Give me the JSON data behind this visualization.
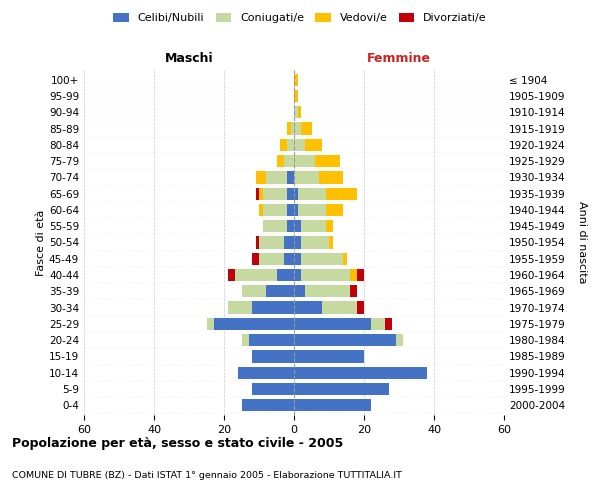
{
  "age_groups": [
    "0-4",
    "5-9",
    "10-14",
    "15-19",
    "20-24",
    "25-29",
    "30-34",
    "35-39",
    "40-44",
    "45-49",
    "50-54",
    "55-59",
    "60-64",
    "65-69",
    "70-74",
    "75-79",
    "80-84",
    "85-89",
    "90-94",
    "95-99",
    "100+"
  ],
  "birth_years": [
    "2000-2004",
    "1995-1999",
    "1990-1994",
    "1985-1989",
    "1980-1984",
    "1975-1979",
    "1970-1974",
    "1965-1969",
    "1960-1964",
    "1955-1959",
    "1950-1954",
    "1945-1949",
    "1940-1944",
    "1935-1939",
    "1930-1934",
    "1925-1929",
    "1920-1924",
    "1915-1919",
    "1910-1914",
    "1905-1909",
    "≤ 1904"
  ],
  "maschi": {
    "celibi": [
      15,
      12,
      16,
      12,
      13,
      23,
      12,
      8,
      5,
      3,
      3,
      2,
      2,
      2,
      2,
      0,
      0,
      0,
      0,
      0,
      0
    ],
    "coniugati": [
      0,
      0,
      0,
      0,
      2,
      2,
      7,
      7,
      12,
      7,
      7,
      7,
      7,
      7,
      6,
      3,
      2,
      1,
      0,
      0,
      0
    ],
    "vedovi": [
      0,
      0,
      0,
      0,
      0,
      0,
      0,
      0,
      0,
      0,
      0,
      0,
      1,
      1,
      3,
      2,
      2,
      1,
      0,
      0,
      0
    ],
    "divorziati": [
      0,
      0,
      0,
      0,
      0,
      0,
      0,
      0,
      2,
      2,
      1,
      0,
      0,
      1,
      0,
      0,
      0,
      0,
      0,
      0,
      0
    ]
  },
  "femmine": {
    "nubili": [
      22,
      27,
      38,
      20,
      29,
      22,
      8,
      3,
      2,
      2,
      2,
      2,
      1,
      1,
      0,
      0,
      0,
      0,
      0,
      0,
      0
    ],
    "coniugate": [
      0,
      0,
      0,
      0,
      2,
      4,
      10,
      13,
      14,
      12,
      8,
      7,
      8,
      8,
      7,
      6,
      3,
      2,
      1,
      0,
      0
    ],
    "vedove": [
      0,
      0,
      0,
      0,
      0,
      0,
      0,
      0,
      2,
      1,
      1,
      2,
      5,
      9,
      7,
      7,
      5,
      3,
      1,
      1,
      1
    ],
    "divorziate": [
      0,
      0,
      0,
      0,
      0,
      2,
      2,
      2,
      2,
      0,
      0,
      0,
      0,
      0,
      0,
      0,
      0,
      0,
      0,
      0,
      0
    ]
  },
  "colors": {
    "celibi": "#4472C4",
    "coniugati": "#c5d9a0",
    "vedovi": "#ffc000",
    "divorziati": "#c0000a"
  },
  "xlim": 60,
  "title": "Popolazione per età, sesso e stato civile - 2005",
  "subtitle": "COMUNE DI TUBRE (BZ) - Dati ISTAT 1° gennaio 2005 - Elaborazione TUTTITALIA.IT",
  "ylabel_left": "Fasce di età",
  "ylabel_right": "Anni di nascita",
  "legend_labels": [
    "Celibi/Nubili",
    "Coniugati/e",
    "Vedovi/e",
    "Divorziati/e"
  ],
  "maschi_label": "Maschi",
  "femmine_label": "Femmine",
  "bg_color": "#ffffff",
  "grid_color": "#bbbbbb",
  "bar_height": 0.75
}
